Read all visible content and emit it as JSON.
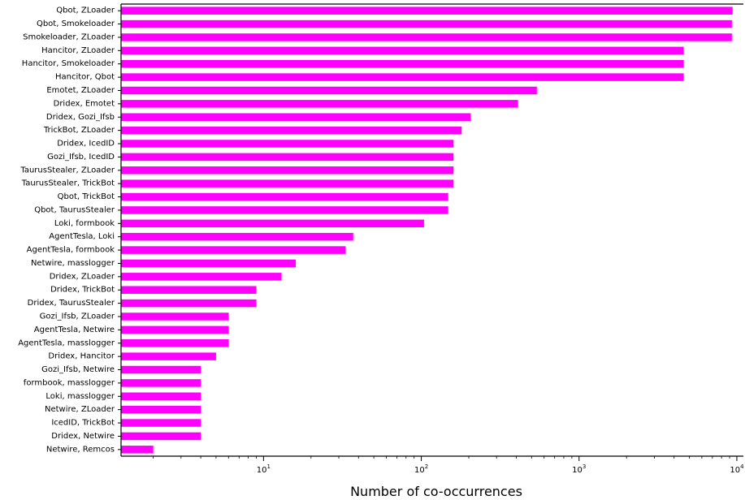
{
  "chart_data": {
    "type": "bar",
    "orientation": "horizontal",
    "title": "",
    "xlabel": "Number of co-occurrences",
    "ylabel": "",
    "xscale": "log",
    "xlim": [
      1.25,
      11000
    ],
    "grid": false,
    "legend": "none",
    "bar_color": "#ff00ff",
    "x_ticks": [
      {
        "value": 10,
        "base": "10",
        "exp": "1"
      },
      {
        "value": 100,
        "base": "10",
        "exp": "2"
      },
      {
        "value": 1000,
        "base": "10",
        "exp": "3"
      },
      {
        "value": 10000,
        "base": "10",
        "exp": "4"
      }
    ],
    "categories": [
      "Qbot, ZLoader",
      "Qbot, Smokeloader",
      "Smokeloader, ZLoader",
      "Hancitor, ZLoader",
      "Hancitor, Smokeloader",
      "Hancitor, Qbot",
      "Emotet, ZLoader",
      "Dridex, Emotet",
      "Dridex, Gozi_Ifsb",
      "TrickBot, ZLoader",
      "Dridex, IcedID",
      "Gozi_Ifsb, IcedID",
      "TaurusStealer, ZLoader",
      "TaurusStealer, TrickBot",
      "Qbot, TrickBot",
      "Qbot, TaurusStealer",
      "Loki, formbook",
      "AgentTesla, Loki",
      "AgentTesla, formbook",
      "Netwire, masslogger",
      "Dridex, ZLoader",
      "Dridex, TrickBot",
      "Dridex, TaurusStealer",
      "Gozi_Ifsb, ZLoader",
      "AgentTesla, Netwire",
      "AgentTesla, masslogger",
      "Dridex, Hancitor",
      "Gozi_Ifsb, Netwire",
      "formbook, masslogger",
      "Loki, masslogger",
      "Netwire, ZLoader",
      "IcedID, TrickBot",
      "Dridex, Netwire",
      "Netwire, Remcos"
    ],
    "values": [
      9400,
      9300,
      9300,
      4600,
      4600,
      4600,
      540,
      410,
      205,
      180,
      160,
      160,
      160,
      160,
      148,
      148,
      104,
      37,
      33,
      16,
      13,
      9,
      9,
      6,
      6,
      6,
      5,
      4,
      4,
      4,
      4,
      4,
      4,
      2
    ]
  }
}
